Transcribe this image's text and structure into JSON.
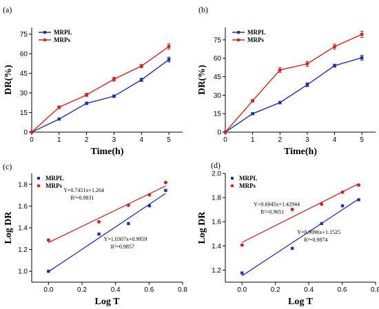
{
  "chart_data": [
    {
      "panel_label": "(a)",
      "type": "line",
      "xlabel": "Time(h)",
      "ylabel": "DR(%)",
      "xlim": [
        0,
        5.5
      ],
      "ylim": [
        0,
        80
      ],
      "xticks": [
        "0",
        "1",
        "2",
        "3",
        "4",
        "5"
      ],
      "yticks": [
        "0",
        "15",
        "30",
        "45",
        "60",
        "75"
      ],
      "legend": "top-left",
      "series": [
        {
          "name": "MRPL",
          "color": "#1f2fb5",
          "marker": "square",
          "x": [
            0,
            1,
            2,
            3,
            4,
            5
          ],
          "y": [
            0,
            10,
            22,
            27.5,
            40,
            55.5
          ],
          "err": [
            0,
            0.8,
            1,
            1,
            1.2,
            1.8
          ]
        },
        {
          "name": "MRPs",
          "color": "#d62020",
          "marker": "circle",
          "x": [
            0,
            1,
            2,
            3,
            4,
            5
          ],
          "y": [
            0,
            19,
            28.5,
            40.5,
            50.5,
            65.5
          ],
          "err": [
            0,
            1,
            1.2,
            1.5,
            1.2,
            2
          ]
        }
      ]
    },
    {
      "panel_label": "(b)",
      "type": "line",
      "xlabel": "Time(h)",
      "ylabel": "DR(%)",
      "xlim": [
        0,
        5.5
      ],
      "ylim": [
        0,
        85
      ],
      "xticks": [
        "0",
        "1",
        "2",
        "3",
        "4",
        "5"
      ],
      "yticks": [
        "0",
        "15",
        "30",
        "45",
        "60",
        "75"
      ],
      "legend": "top-left",
      "series": [
        {
          "name": "MRPL",
          "color": "#1f2fb5",
          "marker": "square",
          "x": [
            0,
            1,
            2,
            3,
            4,
            5
          ],
          "y": [
            0,
            15,
            24,
            38.5,
            54,
            60.5
          ],
          "err": [
            0,
            0.8,
            1,
            1.5,
            1.2,
            2
          ]
        },
        {
          "name": "MRPs",
          "color": "#d62020",
          "marker": "circle",
          "x": [
            0,
            1,
            2,
            3,
            4,
            5
          ],
          "y": [
            0,
            25.5,
            50.5,
            55.5,
            69.5,
            79.5
          ],
          "err": [
            0,
            1,
            2,
            2,
            2,
            2.5
          ]
        }
      ]
    },
    {
      "panel_label": "(c)",
      "type": "scatter",
      "xlabel": "Log T",
      "ylabel": "Log DR",
      "xlim": [
        -0.1,
        0.8
      ],
      "ylim": [
        0.9,
        1.9
      ],
      "xticks": [
        "0.0",
        "0.2",
        "0.4",
        "0.6",
        "0.8"
      ],
      "yticks": [
        "1.0",
        "1.2",
        "1.4",
        "1.6",
        "1.8"
      ],
      "legend": "top-left",
      "series": [
        {
          "name": "MRPL",
          "color": "#1f2fb5",
          "marker": "square",
          "x": [
            0.0,
            0.301,
            0.477,
            0.602,
            0.699
          ],
          "y": [
            1.0,
            1.342,
            1.439,
            1.602,
            1.744
          ],
          "fit": {
            "slope": 1.0307,
            "intercept": 0.9959,
            "x_range": [
              0.0,
              0.699
            ]
          }
        },
        {
          "name": "MRPs",
          "color": "#d62020",
          "marker": "circle",
          "x": [
            0.0,
            0.301,
            0.477,
            0.602,
            0.699
          ],
          "y": [
            1.287,
            1.455,
            1.607,
            1.703,
            1.816
          ],
          "fit": {
            "slope": 0.7451,
            "intercept": 1.264,
            "x_range": [
              0.0,
              0.699
            ]
          }
        }
      ],
      "annotations": [
        {
          "lines": [
            "Y=0.7451x+1.264",
            "R²=0.9831"
          ],
          "x": 0.09,
          "y": 1.73
        },
        {
          "lines": [
            "Y=1.0307x+0.9959",
            "R²=0.9857"
          ],
          "x": 0.33,
          "y": 1.28
        }
      ]
    },
    {
      "panel_label": "(d)",
      "type": "scatter",
      "xlabel": "Log T",
      "ylabel": "Log DR",
      "xlim": [
        -0.1,
        0.8
      ],
      "ylim": [
        1.1,
        2.0
      ],
      "xticks": [
        "0.0",
        "0.2",
        "0.4",
        "0.6",
        "0.8"
      ],
      "yticks": [
        "1.2",
        "1.4",
        "1.6",
        "1.8",
        "2.0"
      ],
      "legend": "top-left",
      "series": [
        {
          "name": "MRPL",
          "color": "#1f2fb5",
          "marker": "square",
          "x": [
            0.0,
            0.301,
            0.477,
            0.602,
            0.699
          ],
          "y": [
            1.176,
            1.38,
            1.585,
            1.732,
            1.782
          ],
          "fit": {
            "slope": 0.9096,
            "intercept": 1.1525,
            "x_range": [
              0.0,
              0.699
            ]
          }
        },
        {
          "name": "MRPs",
          "color": "#d62020",
          "marker": "circle",
          "x": [
            0.0,
            0.301,
            0.477,
            0.602,
            0.699
          ],
          "y": [
            1.407,
            1.702,
            1.745,
            1.845,
            1.903
          ],
          "fit": {
            "slope": 0.6945,
            "intercept": 1.42944,
            "x_range": [
              0.0,
              0.699
            ]
          }
        }
      ],
      "annotations": [
        {
          "lines": [
            "Y=0.6945x+1.42944",
            "R²=0.9651"
          ],
          "x": 0.07,
          "y": 1.73
        },
        {
          "lines": [
            "Y=0.9096x+1.1525",
            "R²=0.9874"
          ],
          "x": 0.33,
          "y": 1.5
        }
      ]
    }
  ]
}
